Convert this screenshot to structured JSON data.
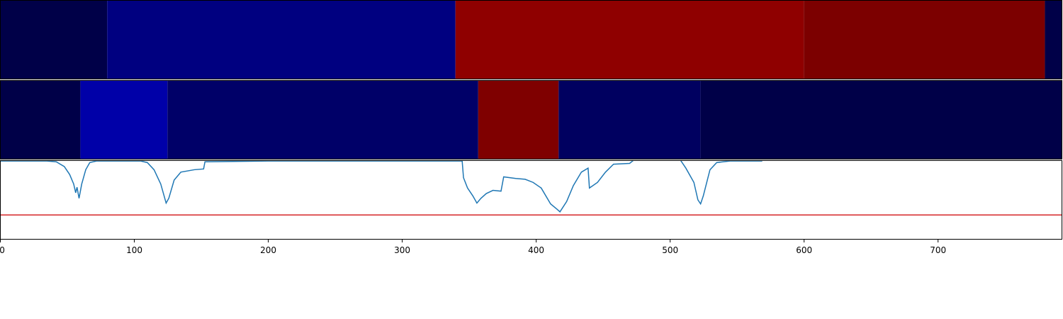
{
  "chart_data": [
    {
      "type": "segments",
      "edges": [
        0,
        80,
        340,
        600,
        780,
        793
      ],
      "colors": [
        "#000048",
        "#000080",
        "#8f0000",
        "#7c0000",
        "#000048"
      ],
      "xlim": [
        0,
        793
      ]
    },
    {
      "type": "segments",
      "edges": [
        0,
        60,
        125,
        357,
        417,
        523,
        793
      ],
      "colors": [
        "#000048",
        "#0000a8",
        "#000068",
        "#7f0000",
        "#000060",
        "#000048"
      ],
      "xlim": [
        0,
        793
      ]
    },
    {
      "type": "line",
      "color": "#1f77b4",
      "threshold": 0.31,
      "threshold_color": "#d62728",
      "xlim": [
        0,
        793
      ],
      "ylim": [
        0,
        1
      ],
      "xticks": [
        0,
        100,
        200,
        300,
        400,
        500,
        600,
        700
      ],
      "x": [
        0,
        20,
        35,
        42,
        48,
        52,
        55,
        56.5,
        57.5,
        59,
        61,
        64,
        67,
        72,
        105,
        110,
        115,
        120,
        124,
        126,
        130,
        135,
        145,
        152,
        153,
        200,
        340,
        345,
        346,
        349,
        353,
        356,
        359,
        363,
        368,
        374,
        376,
        385,
        392,
        398,
        404,
        411,
        416,
        418,
        423,
        428,
        434,
        439,
        440,
        446,
        452,
        458,
        470,
        473,
        478,
        505,
        508,
        512,
        518,
        521,
        523,
        525,
        530,
        535,
        545,
        569
      ],
      "values": [
        0.99,
        0.99,
        0.99,
        0.98,
        0.92,
        0.82,
        0.7,
        0.59,
        0.66,
        0.52,
        0.7,
        0.88,
        0.97,
        0.99,
        0.99,
        0.97,
        0.88,
        0.7,
        0.46,
        0.52,
        0.75,
        0.85,
        0.88,
        0.89,
        0.98,
        0.99,
        0.99,
        0.99,
        0.78,
        0.65,
        0.55,
        0.46,
        0.52,
        0.58,
        0.62,
        0.61,
        0.79,
        0.77,
        0.76,
        0.72,
        0.65,
        0.45,
        0.38,
        0.35,
        0.48,
        0.68,
        0.85,
        0.9,
        0.65,
        0.72,
        0.85,
        0.95,
        0.96,
        1.0,
        1.1,
        1.1,
        1.0,
        0.9,
        0.72,
        0.5,
        0.45,
        0.55,
        0.88,
        0.97,
        0.99,
        0.99
      ]
    }
  ]
}
